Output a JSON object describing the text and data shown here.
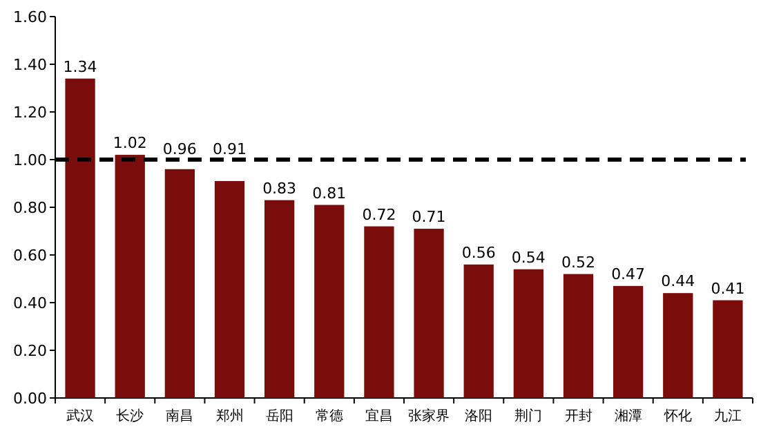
{
  "chart_data": {
    "type": "bar",
    "categories": [
      "武汉",
      "长沙",
      "南昌",
      "郑州",
      "岳阳",
      "常德",
      "宜昌",
      "张家界",
      "洛阳",
      "荆门",
      "开封",
      "湘潭",
      "怀化",
      "九江"
    ],
    "values": [
      1.34,
      1.02,
      0.96,
      0.91,
      0.83,
      0.81,
      0.72,
      0.71,
      0.56,
      0.54,
      0.52,
      0.47,
      0.44,
      0.41
    ],
    "color": "#7b0c0c",
    "data_labels": true,
    "ylim": [
      0,
      1.6
    ],
    "yticks": [
      {
        "value": 0,
        "label": "0.00"
      },
      {
        "value": 0.2,
        "label": "0.20"
      },
      {
        "value": 0.4,
        "label": "0.40"
      },
      {
        "value": 0.6,
        "label": "0.60"
      },
      {
        "value": 0.8,
        "label": "0.80"
      },
      {
        "value": 1,
        "label": "1.00"
      },
      {
        "value": 1.2,
        "label": "1.20"
      },
      {
        "value": 1.4,
        "label": "1.40"
      },
      {
        "value": 1.6,
        "label": "1.60"
      }
    ],
    "ref_lines": [
      {
        "axis": "y",
        "value": 1,
        "color": "#000000",
        "line_style": "dashed"
      }
    ]
  }
}
